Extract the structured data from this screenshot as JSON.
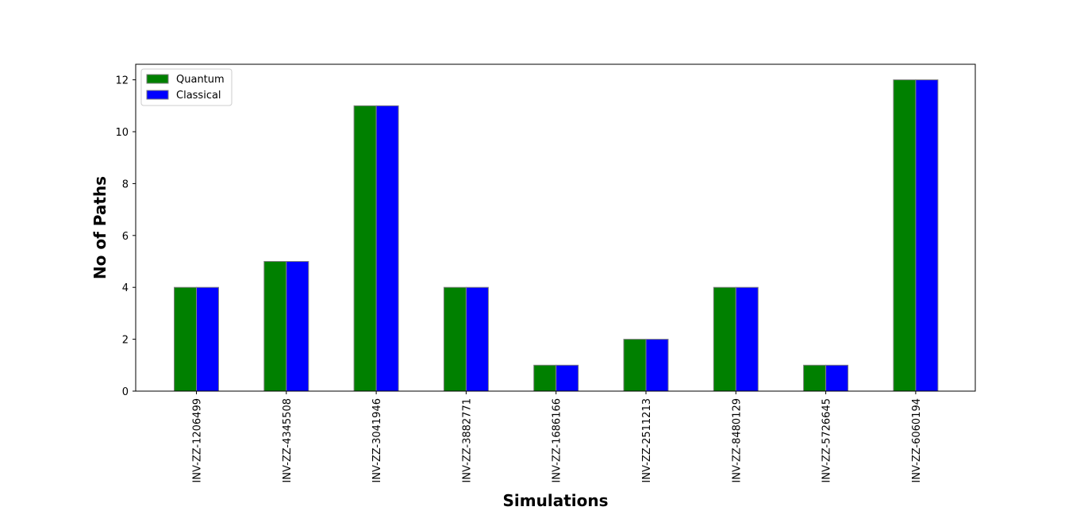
{
  "chart_data": {
    "type": "bar",
    "title": "",
    "xlabel": "Simulations",
    "ylabel": "No of Paths",
    "categories": [
      "INV-ZZ-1206499",
      "INV-ZZ-4345508",
      "INV-ZZ-3041946",
      "INV-ZZ-3882771",
      "INV-ZZ-1686166",
      "INV-ZZ-2511213",
      "INV-ZZ-8480129",
      "INV-ZZ-5726645",
      "INV-ZZ-6060194"
    ],
    "series": [
      {
        "name": "Quantum",
        "color": "#008000",
        "values": [
          4,
          5,
          11,
          4,
          1,
          2,
          4,
          1,
          12
        ]
      },
      {
        "name": "Classical",
        "color": "#0000ff",
        "values": [
          4,
          5,
          11,
          4,
          1,
          2,
          4,
          1,
          12
        ]
      }
    ],
    "ylim": [
      0,
      12.6
    ],
    "yticks": [
      "0",
      "2",
      "4",
      "6",
      "8",
      "10",
      "12"
    ],
    "grid": false,
    "legend_position": "top-left",
    "bar_edge_color": "#808080"
  }
}
